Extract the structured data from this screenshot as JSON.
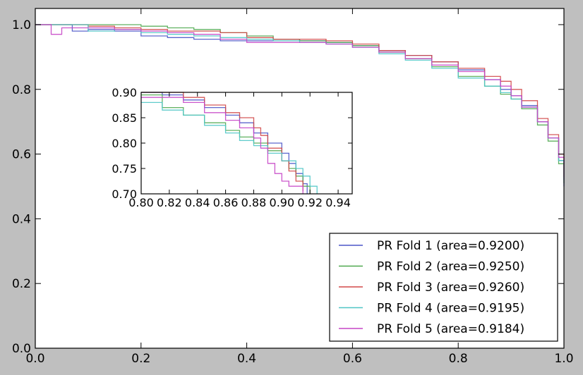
{
  "chart_data": [
    {
      "type": "line",
      "role": "main",
      "title": "",
      "xlabel": "",
      "ylabel": "",
      "xlim": [
        0.0,
        1.0
      ],
      "ylim": [
        0.0,
        1.05
      ],
      "xticks": [
        0.0,
        0.2,
        0.4,
        0.6,
        0.8,
        1.0
      ],
      "yticks": [
        0.0,
        0.2,
        0.4,
        0.6,
        0.8,
        1.0
      ],
      "xtick_labels": [
        "0.0",
        "0.2",
        "0.4",
        "0.6",
        "0.8",
        "1.0"
      ],
      "ytick_labels": [
        "0.0",
        "0.2",
        "0.4",
        "0.6",
        "0.8",
        "1.0"
      ],
      "grid": false,
      "legend_position": "lower-right",
      "series": [
        {
          "name": "PR Fold 1 (area=0.9200)",
          "color": "#4b56c8",
          "x": [
            0.0,
            0.05,
            0.07,
            0.1,
            0.15,
            0.2,
            0.25,
            0.3,
            0.35,
            0.4,
            0.45,
            0.5,
            0.55,
            0.6,
            0.65,
            0.7,
            0.75,
            0.8,
            0.85,
            0.88,
            0.9,
            0.92,
            0.95,
            0.97,
            0.99,
            1.0
          ],
          "y": [
            1.0,
            1.0,
            0.98,
            0.985,
            0.98,
            0.965,
            0.96,
            0.955,
            0.95,
            0.95,
            0.955,
            0.95,
            0.945,
            0.935,
            0.92,
            0.905,
            0.885,
            0.86,
            0.83,
            0.8,
            0.78,
            0.75,
            0.7,
            0.65,
            0.58,
            0.5
          ]
        },
        {
          "name": "PR Fold 2 (area=0.9250)",
          "color": "#4fa84f",
          "x": [
            0.0,
            0.05,
            0.1,
            0.15,
            0.2,
            0.25,
            0.3,
            0.35,
            0.4,
            0.45,
            0.5,
            0.55,
            0.6,
            0.65,
            0.7,
            0.75,
            0.8,
            0.85,
            0.88,
            0.9,
            0.92,
            0.95,
            0.97,
            0.99,
            1.0
          ],
          "y": [
            1.0,
            1.0,
            1.0,
            1.0,
            0.995,
            0.99,
            0.985,
            0.975,
            0.965,
            0.955,
            0.95,
            0.945,
            0.935,
            0.915,
            0.895,
            0.87,
            0.84,
            0.81,
            0.785,
            0.77,
            0.74,
            0.69,
            0.64,
            0.57,
            0.51
          ]
        },
        {
          "name": "PR Fold 3 (area=0.9260)",
          "color": "#d24848",
          "x": [
            0.0,
            0.05,
            0.1,
            0.15,
            0.2,
            0.25,
            0.3,
            0.35,
            0.4,
            0.45,
            0.5,
            0.55,
            0.6,
            0.65,
            0.7,
            0.75,
            0.8,
            0.85,
            0.88,
            0.9,
            0.92,
            0.95,
            0.97,
            0.99,
            1.0
          ],
          "y": [
            1.0,
            1.0,
            0.995,
            0.99,
            0.985,
            0.98,
            0.98,
            0.975,
            0.96,
            0.955,
            0.955,
            0.95,
            0.94,
            0.92,
            0.905,
            0.885,
            0.865,
            0.84,
            0.825,
            0.8,
            0.765,
            0.71,
            0.66,
            0.6,
            0.53
          ]
        },
        {
          "name": "PR Fold 4 (area=0.9195)",
          "color": "#4fc6c6",
          "x": [
            0.0,
            0.05,
            0.1,
            0.15,
            0.2,
            0.25,
            0.3,
            0.35,
            0.4,
            0.45,
            0.5,
            0.55,
            0.6,
            0.65,
            0.7,
            0.75,
            0.8,
            0.85,
            0.88,
            0.9,
            0.92,
            0.95,
            0.97,
            0.99,
            1.0
          ],
          "y": [
            1.0,
            1.0,
            0.98,
            0.985,
            0.975,
            0.97,
            0.965,
            0.96,
            0.955,
            0.95,
            0.945,
            0.94,
            0.93,
            0.91,
            0.89,
            0.865,
            0.835,
            0.81,
            0.79,
            0.77,
            0.745,
            0.7,
            0.65,
            0.58,
            0.52
          ]
        },
        {
          "name": "PR Fold 5 (area=0.9184)",
          "color": "#c645c6",
          "x": [
            0.0,
            0.03,
            0.05,
            0.1,
            0.15,
            0.2,
            0.25,
            0.3,
            0.35,
            0.4,
            0.45,
            0.5,
            0.55,
            0.6,
            0.65,
            0.7,
            0.75,
            0.8,
            0.85,
            0.88,
            0.9,
            0.92,
            0.95,
            0.97,
            0.99,
            1.0
          ],
          "y": [
            1.0,
            0.97,
            0.99,
            0.99,
            0.985,
            0.98,
            0.975,
            0.97,
            0.955,
            0.945,
            0.945,
            0.945,
            0.94,
            0.93,
            0.915,
            0.895,
            0.875,
            0.855,
            0.83,
            0.81,
            0.78,
            0.745,
            0.7,
            0.65,
            0.59,
            0.52
          ]
        }
      ]
    },
    {
      "type": "line",
      "role": "inset",
      "title": "",
      "xlim": [
        0.8,
        0.95
      ],
      "ylim": [
        0.7,
        0.9
      ],
      "xticks": [
        0.8,
        0.82,
        0.84,
        0.86,
        0.88,
        0.9,
        0.92,
        0.94
      ],
      "yticks": [
        0.7,
        0.75,
        0.8,
        0.85,
        0.9
      ],
      "xtick_labels": [
        "0.80",
        "0.82",
        "0.84",
        "0.86",
        "0.88",
        "0.90",
        "0.92",
        "0.94"
      ],
      "ytick_labels": [
        "0.70",
        "0.75",
        "0.80",
        "0.85",
        "0.90"
      ],
      "grid": false,
      "series": [
        {
          "color": "#4b56c8",
          "x": [
            0.8,
            0.815,
            0.83,
            0.845,
            0.86,
            0.87,
            0.88,
            0.89,
            0.9,
            0.905,
            0.91,
            0.915,
            0.918
          ],
          "y": [
            0.9,
            0.895,
            0.885,
            0.87,
            0.855,
            0.84,
            0.82,
            0.8,
            0.78,
            0.76,
            0.74,
            0.72,
            0.7
          ]
        },
        {
          "color": "#4fa84f",
          "x": [
            0.8,
            0.815,
            0.83,
            0.845,
            0.86,
            0.87,
            0.88,
            0.89,
            0.9,
            0.905,
            0.91,
            0.915,
            0.92
          ],
          "y": [
            0.895,
            0.87,
            0.855,
            0.84,
            0.825,
            0.812,
            0.8,
            0.785,
            0.765,
            0.75,
            0.735,
            0.715,
            0.7
          ]
        },
        {
          "color": "#d24848",
          "x": [
            0.8,
            0.815,
            0.83,
            0.845,
            0.86,
            0.87,
            0.88,
            0.885,
            0.89,
            0.9,
            0.905,
            0.91,
            0.915
          ],
          "y": [
            0.9,
            0.9,
            0.89,
            0.875,
            0.86,
            0.85,
            0.83,
            0.815,
            0.79,
            0.765,
            0.745,
            0.725,
            0.705
          ]
        },
        {
          "color": "#4fc6c6",
          "x": [
            0.8,
            0.815,
            0.83,
            0.845,
            0.86,
            0.87,
            0.88,
            0.89,
            0.9,
            0.91,
            0.915,
            0.92,
            0.925
          ],
          "y": [
            0.88,
            0.865,
            0.855,
            0.835,
            0.82,
            0.805,
            0.795,
            0.78,
            0.765,
            0.75,
            0.735,
            0.715,
            0.7
          ]
        },
        {
          "color": "#c645c6",
          "x": [
            0.8,
            0.815,
            0.83,
            0.845,
            0.86,
            0.87,
            0.88,
            0.885,
            0.89,
            0.895,
            0.9,
            0.905,
            0.915
          ],
          "y": [
            0.89,
            0.89,
            0.88,
            0.86,
            0.845,
            0.83,
            0.81,
            0.79,
            0.76,
            0.74,
            0.725,
            0.715,
            0.7
          ]
        }
      ]
    }
  ]
}
